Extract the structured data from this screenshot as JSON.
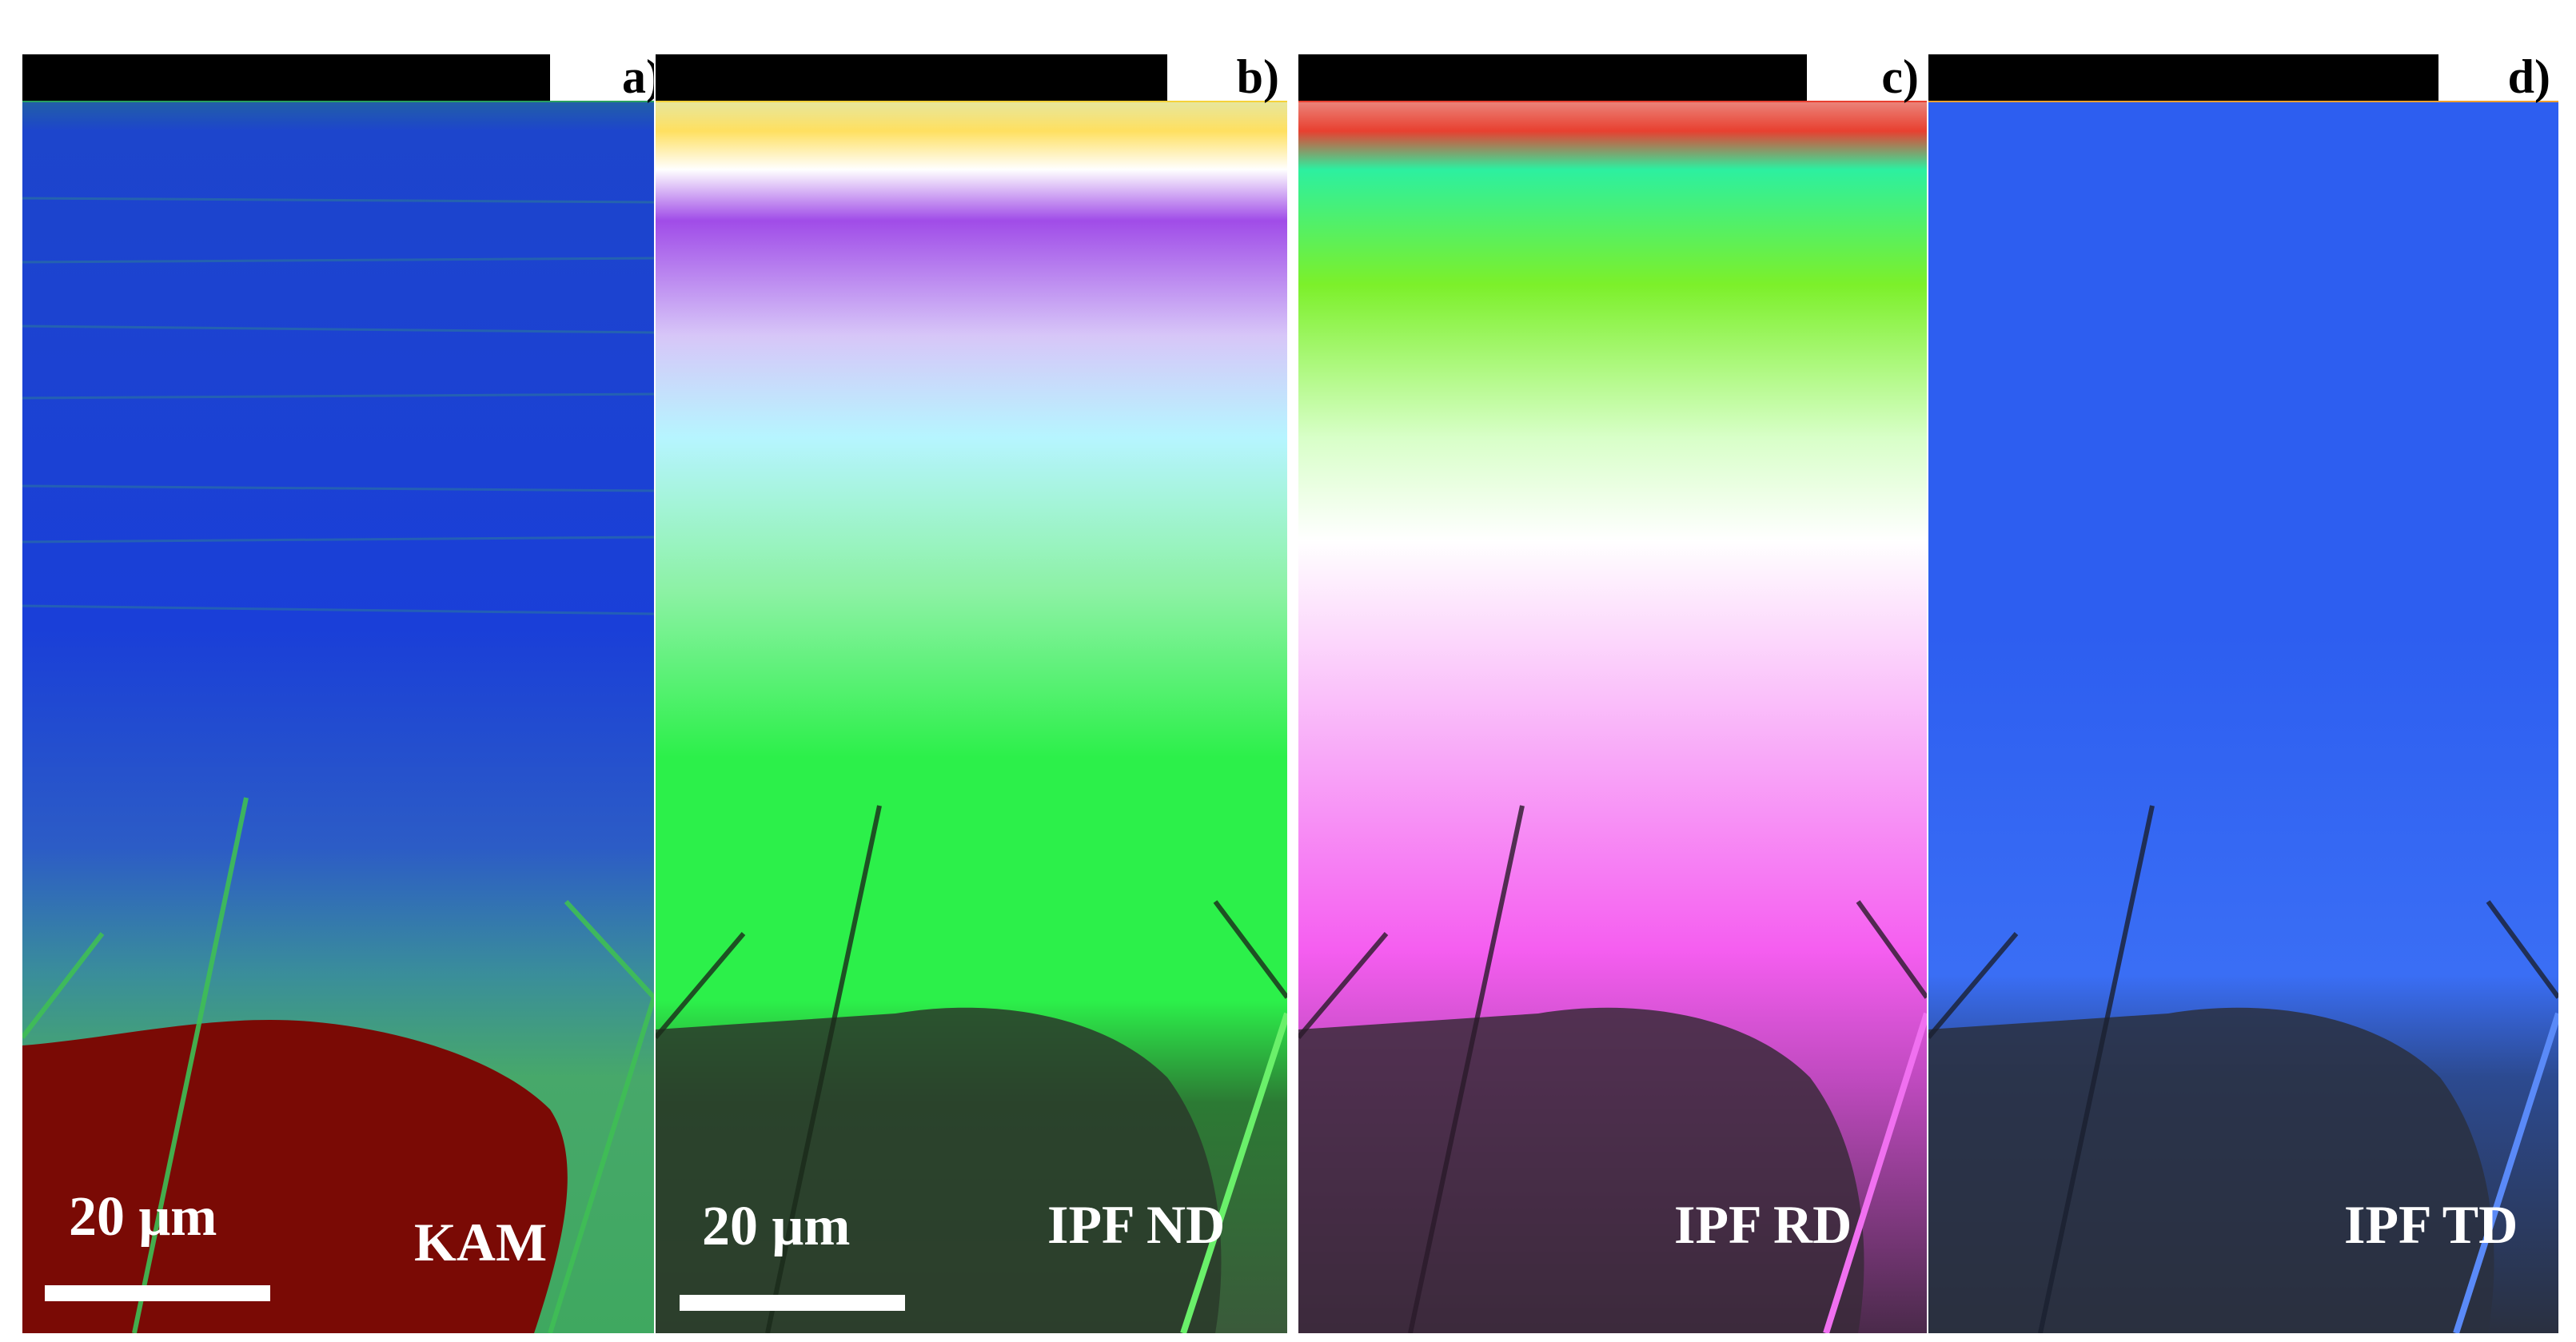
{
  "figure": {
    "panels": [
      {
        "id": "a",
        "letter": "a)",
        "map_label": "KAM",
        "scale_text": "20 μm",
        "color_key": "kam"
      },
      {
        "id": "b",
        "letter": "b)",
        "map_label": "IPF ND",
        "scale_text": "20 μm",
        "color_key": "ipf_nd"
      },
      {
        "id": "c",
        "letter": "c)",
        "map_label": "IPF RD",
        "scale_text": "",
        "color_key": "ipf_rd"
      },
      {
        "id": "d",
        "letter": "d)",
        "map_label": "IPF TD",
        "scale_text": "",
        "color_key": "ipf_td"
      }
    ],
    "colors": {
      "kam": {
        "base": "#1a3fd8",
        "mid": "#2f66c8",
        "green": "#3fbf55",
        "red": "#7a0a05"
      },
      "ipf_nd": {
        "purple": "#a04ce8",
        "cyan": "#b6f5ff",
        "green": "#2cf04a",
        "dark": "#2a3a2a"
      },
      "ipf_rd": {
        "green": "#7cf02a",
        "white": "#ffffff",
        "magenta": "#f55ef0",
        "dark": "#3a2a3a"
      },
      "ipf_td": {
        "blue": "#2d5ef0",
        "mid": "#3a6ef5",
        "dark": "#2a3040"
      },
      "top_band": [
        "#f5d23a",
        "#3ae0c8",
        "#e8405a",
        "#4a8cf0",
        "#f0a030"
      ]
    }
  }
}
